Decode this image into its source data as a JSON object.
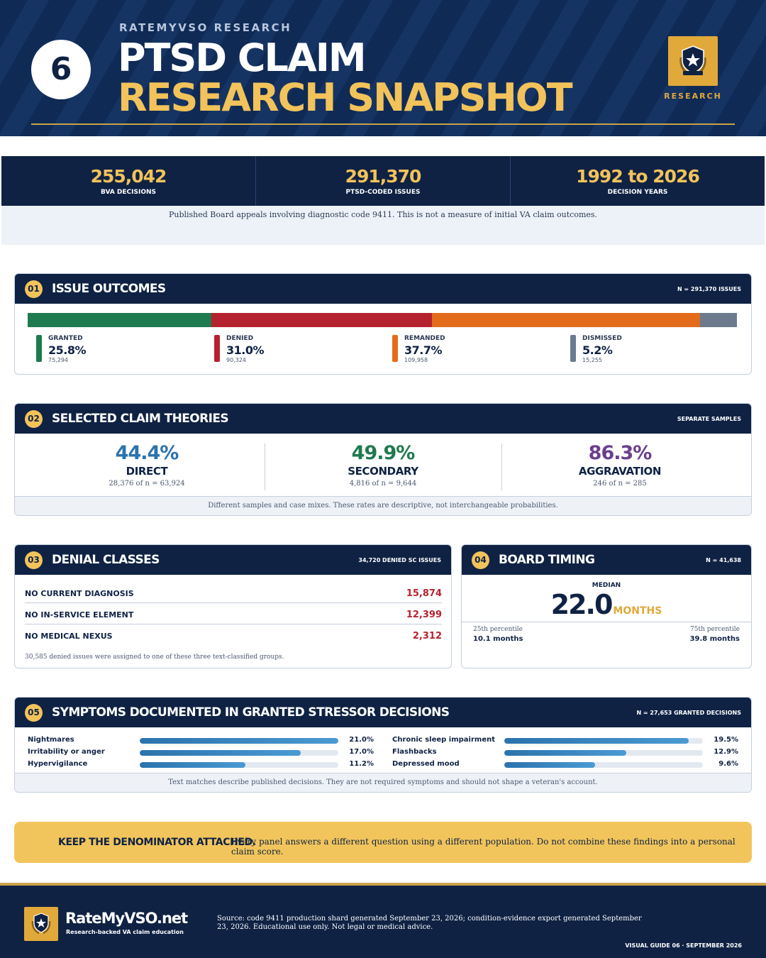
{
  "header": {
    "badge_number": "6",
    "kicker": "RATEMYVSO RESEARCH",
    "title_line1": "PTSD CLAIM",
    "title_line2": "RESEARCH SNAPSHOT",
    "emblem_label": "RESEARCH",
    "emblem_ribbon": "RateMyVSO.net"
  },
  "stats": [
    {
      "value": "255,042",
      "label": "BVA DECISIONS"
    },
    {
      "value": "291,370",
      "label": "PTSD-CODED ISSUES"
    },
    {
      "value": "1992 to 2026",
      "label": "DECISION YEARS"
    }
  ],
  "stats_note": "Published Board appeals involving diagnostic code 9411. This is not a measure of initial VA claim outcomes.",
  "colors": {
    "navy": "#0f2244",
    "gold": "#f2c35a",
    "granted": "#1e7a4f",
    "denied": "#b5222f",
    "remanded": "#e36c1c",
    "dismissed": "#6c7a8e",
    "direct": "#2b73ad",
    "secondary": "#1e7a4f",
    "aggravation": "#6b3f8c"
  },
  "panel1": {
    "num": "01",
    "title": "ISSUE OUTCOMES",
    "meta": "N = 291,370 ISSUES"
  },
  "panel2": {
    "num": "02",
    "title": "SELECTED CLAIM THEORIES",
    "meta": "SEPARATE SAMPLES",
    "footnote": "Different samples and case mixes. These rates are descriptive, not interchangeable probabilities."
  },
  "panel3": {
    "num": "03",
    "title": "DENIAL CLASSES",
    "meta": "34,720 DENIED SC ISSUES",
    "note": "30,585 denied issues were assigned to one of these three text-classified groups."
  },
  "panel4": {
    "num": "04",
    "title": "BOARD TIMING",
    "meta": "N = 41,638",
    "median_label": "MEDIAN",
    "median_value": "22.0",
    "median_unit": "MONTHS",
    "p25_label": "25th percentile",
    "p25_value": "10.1 months",
    "p75_label": "75th percentile",
    "p75_value": "39.8 months"
  },
  "panel5": {
    "num": "05",
    "title": "SYMPTOMS DOCUMENTED IN GRANTED STRESSOR DECISIONS",
    "meta": "N = 27,653 GRANTED DECISIONS",
    "footnote": "Text matches describe published decisions. They are not required symptoms and should not shape a veteran's account."
  },
  "callout": {
    "head": "KEEP THE DENOMINATOR ATTACHED.",
    "text": "Every panel answers a different question using a different population. Do not combine these findings into a personal claim score."
  },
  "footer": {
    "brand": "RateMyVSO.net",
    "tagline": "Research-backed VA claim education",
    "source": "Source: code 9411 production shard generated September 23, 2026; condition-evidence export generated September 23, 2026. Educational use only. Not legal or medical advice.",
    "guide": "VISUAL GUIDE 06 · SEPTEMBER 2026"
  },
  "chart_data": [
    {
      "type": "bar",
      "title": "ISSUE OUTCOMES",
      "orientation": "stacked-horizontal",
      "categories": [
        "GRANTED",
        "DENIED",
        "REMANDED",
        "DISMISSED"
      ],
      "values": [
        25.8,
        31.0,
        37.7,
        5.2
      ],
      "labels": [
        "25.8%",
        "31.0%",
        "37.7%",
        "5.2%"
      ],
      "counts": [
        "75,294",
        "90,324",
        "109,958",
        "15,255"
      ],
      "total": 291370
    },
    {
      "type": "table",
      "title": "SELECTED CLAIM THEORIES",
      "categories": [
        "DIRECT",
        "SECONDARY",
        "AGGRAVATION"
      ],
      "values": [
        44.4,
        49.9,
        86.3
      ],
      "labels": [
        "44.4%",
        "49.9%",
        "86.3%"
      ],
      "samples": [
        "28,376 of n = 63,924",
        "4,816 of n = 9,644",
        "246 of n = 285"
      ]
    },
    {
      "type": "table",
      "title": "DENIAL CLASSES",
      "categories": [
        "NO CURRENT DIAGNOSIS",
        "NO IN-SERVICE ELEMENT",
        "NO MEDICAL NEXUS"
      ],
      "values": [
        15874,
        12399,
        2312
      ],
      "labels": [
        "15,874",
        "12,399",
        "2,312"
      ]
    },
    {
      "type": "bar",
      "title": "SYMPTOMS DOCUMENTED IN GRANTED STRESSOR DECISIONS",
      "orientation": "horizontal",
      "categories": [
        "Nightmares",
        "Irritability or anger",
        "Hypervigilance",
        "Chronic sleep impairment",
        "Flashbacks",
        "Depressed mood"
      ],
      "values": [
        21.0,
        17.0,
        11.2,
        19.5,
        12.9,
        9.6
      ],
      "labels": [
        "21.0%",
        "17.0%",
        "11.2%",
        "19.5%",
        "12.9%",
        "9.6%"
      ],
      "xlim": [
        0,
        21.0
      ]
    }
  ]
}
